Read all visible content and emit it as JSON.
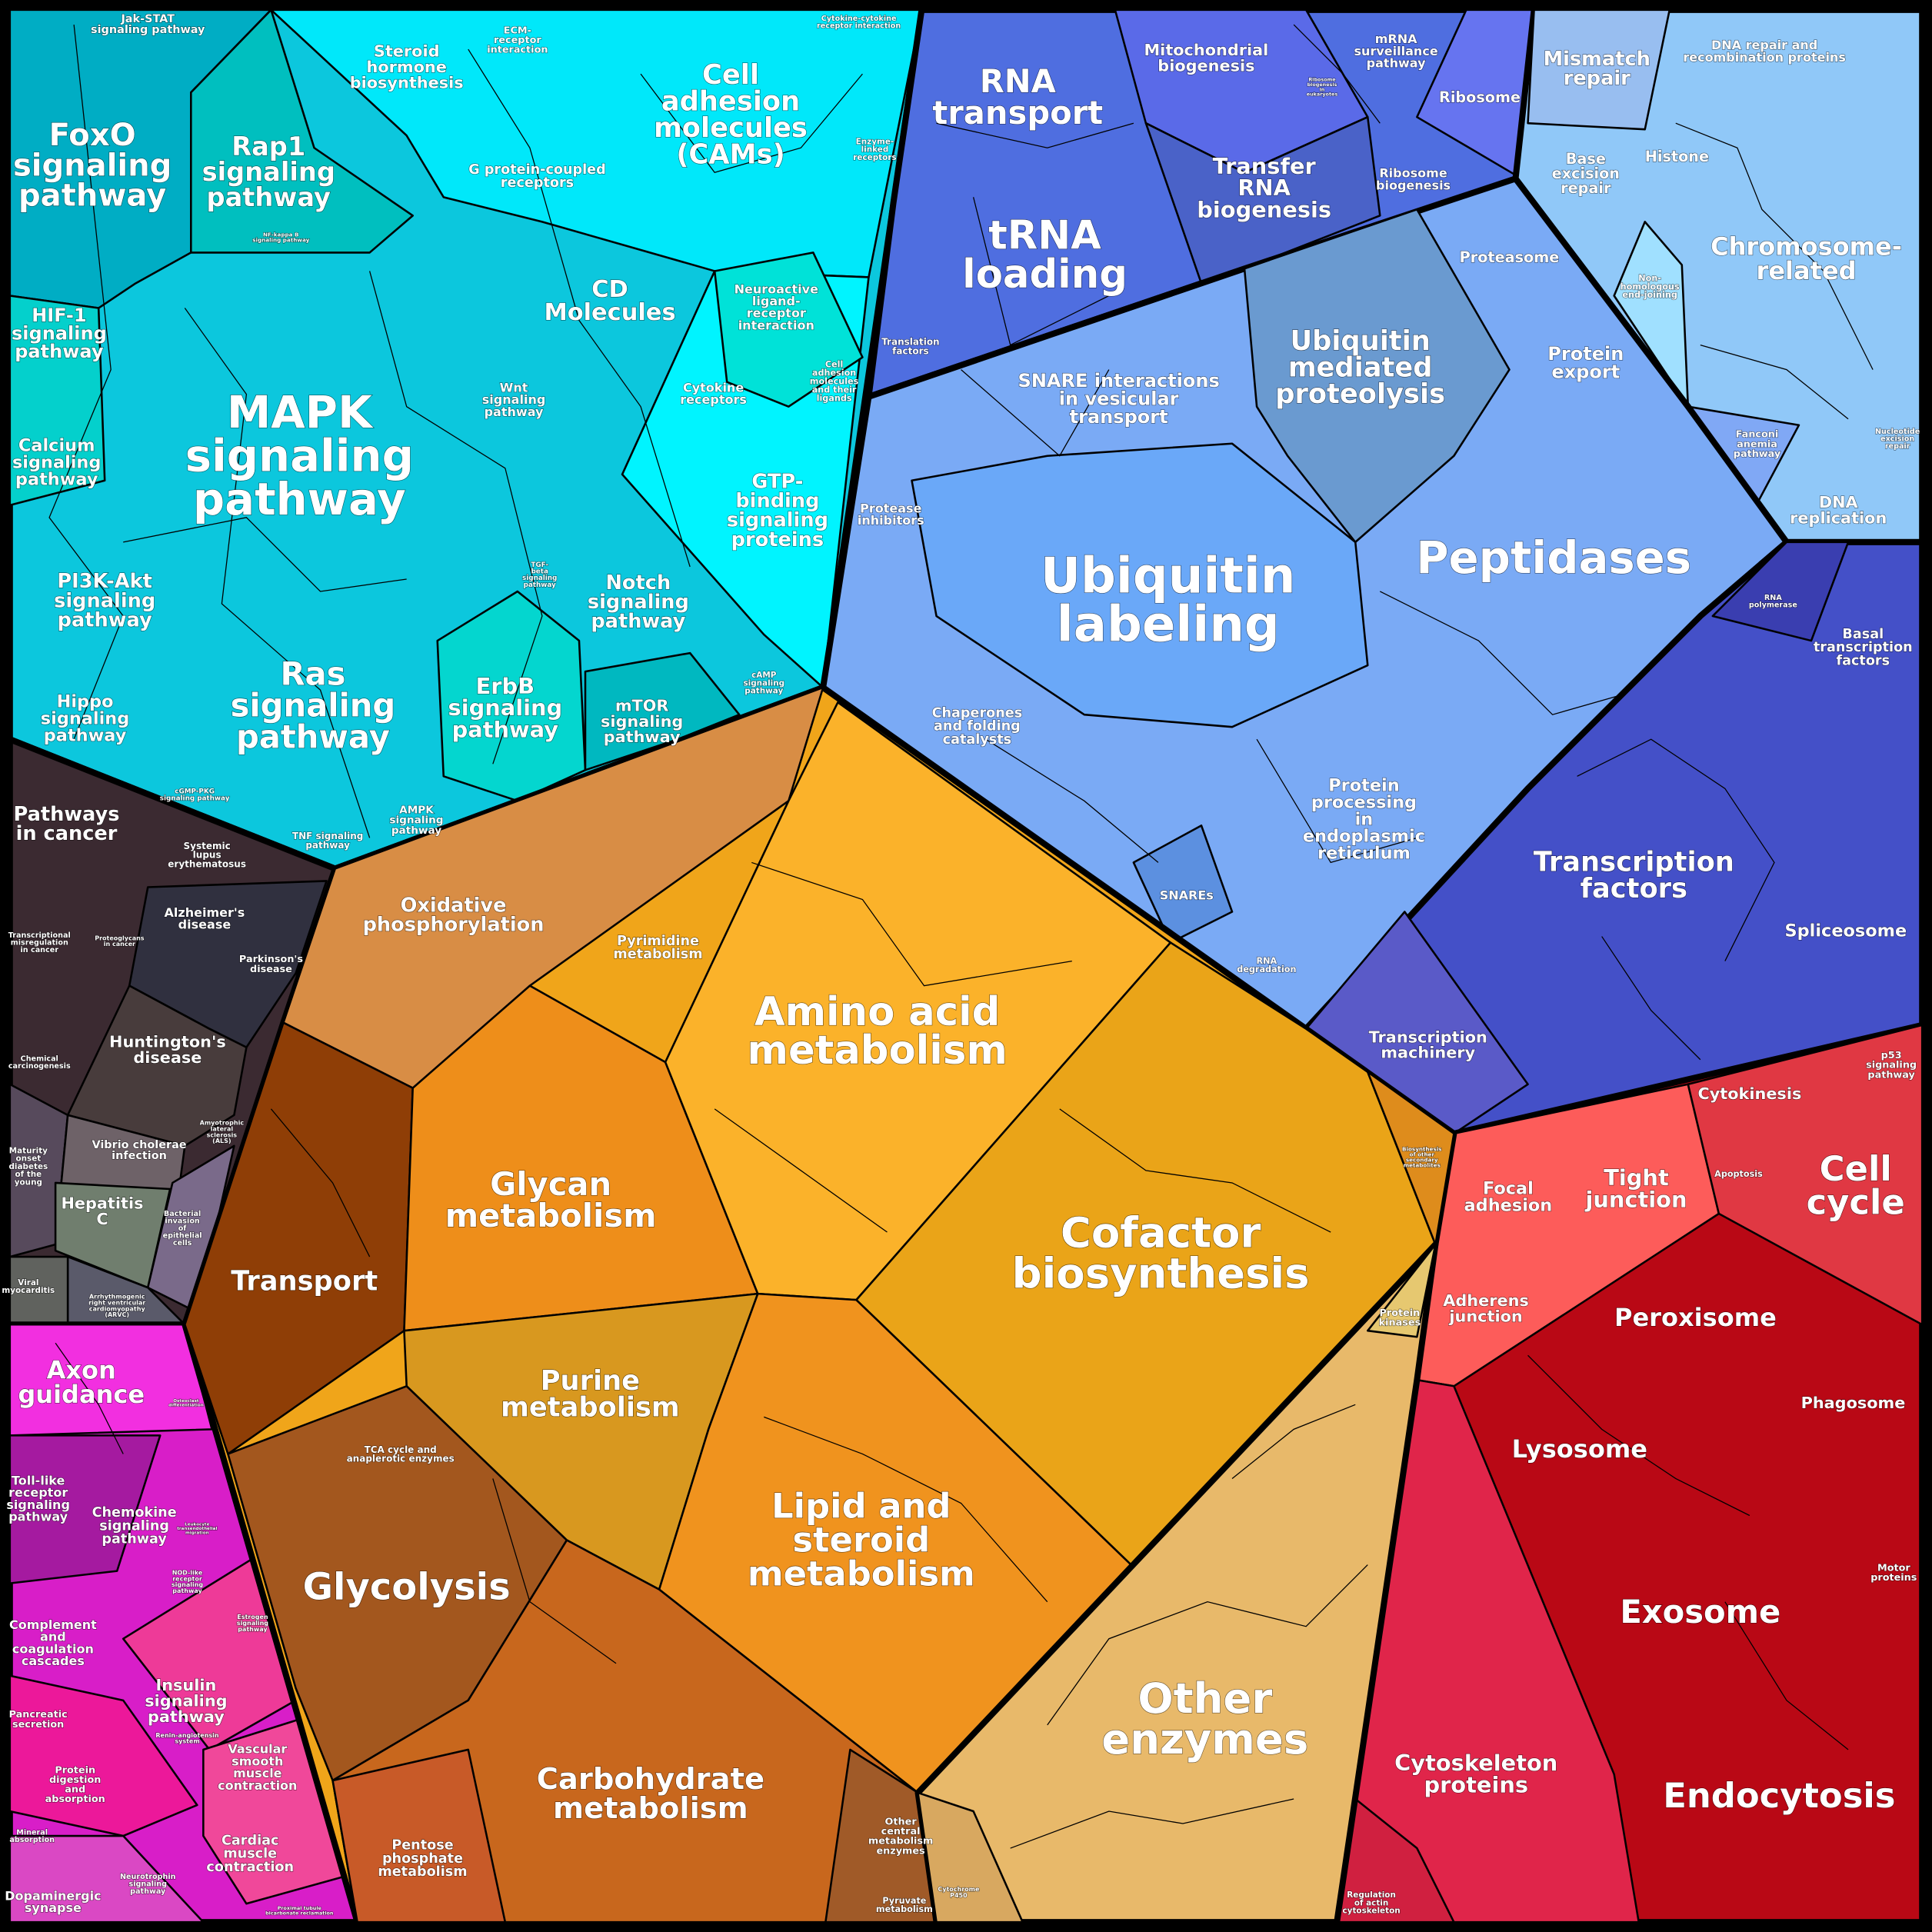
{
  "colors": {
    "environmental": "#0cc7dd",
    "disease": "#3a2a30",
    "organismal": "#d81ec8",
    "genetic_rna": "#4f6ee0",
    "protein_fate": "#7aaaf5",
    "dna": "#90c8f8",
    "transcription": "#4450c8",
    "cellular": "#b90815",
    "metabolism": "#f0a51a",
    "other_enzymes": "#e8b96a"
  },
  "labels": {
    "jak": [
      "Jak-STAT",
      "signaling pathway"
    ],
    "foxo": [
      "FoxO",
      "signaling",
      "pathway"
    ],
    "rap1": [
      "Rap1",
      "signaling",
      "pathway"
    ],
    "steroid": [
      "Steroid",
      "hormone",
      "biosynthesis"
    ],
    "ecm": [
      "ECM-",
      "receptor",
      "interaction"
    ],
    "cams": [
      "Cell",
      "adhesion",
      "molecules",
      "(CAMs)"
    ],
    "cytocyto": [
      "Cytokine-cytokine",
      "receptor interaction"
    ],
    "enzlinked": [
      "Enzyme-",
      "linked",
      "receptors"
    ],
    "gpcr": [
      "G protein-coupled",
      "receptors"
    ],
    "nfkb": [
      "NF-kappa B",
      "signaling pathway"
    ],
    "cd": [
      "CD",
      "Molecules"
    ],
    "neuro": [
      "Neuroactive",
      "ligand-",
      "receptor",
      "interaction"
    ],
    "camlig": [
      "Cell",
      "adhesion",
      "molecules",
      "and their",
      "ligands"
    ],
    "cytorec": [
      "Cytokine",
      "receptors"
    ],
    "hif": [
      "HIF-1",
      "signaling",
      "pathway"
    ],
    "mapk": [
      "MAPK",
      "signaling",
      "pathway"
    ],
    "wnt": [
      "Wnt",
      "signaling",
      "pathway"
    ],
    "calcium": [
      "Calcium",
      "signaling",
      "pathway"
    ],
    "gtp": [
      "GTP-",
      "binding",
      "signaling",
      "proteins"
    ],
    "tgf": [
      "TGF-",
      "beta",
      "signaling",
      "pathway"
    ],
    "pi3k": [
      "PI3K-Akt",
      "signaling",
      "pathway"
    ],
    "notch": [
      "Notch",
      "signaling",
      "pathway"
    ],
    "ras": [
      "Ras",
      "signaling",
      "pathway"
    ],
    "erbb": [
      "ErbB",
      "signaling",
      "pathway"
    ],
    "mtor": [
      "mTOR",
      "signaling",
      "pathway"
    ],
    "camp": [
      "cAMP",
      "signaling",
      "pathway"
    ],
    "hippo": [
      "Hippo",
      "signaling",
      "pathway"
    ],
    "cgmp": [
      "cGMP-PKG",
      "signaling pathway"
    ],
    "tnf": [
      "TNF signaling",
      "pathway"
    ],
    "ampk": [
      "AMPK",
      "signaling",
      "pathway"
    ],
    "cancer": [
      "Pathways",
      "in cancer"
    ],
    "sle": [
      "Systemic",
      "lupus",
      "erythematosus"
    ],
    "misreg": [
      "Transcriptional",
      "misregulation",
      "in cancer"
    ],
    "proteoglycans": [
      "Proteoglycans",
      "in cancer"
    ],
    "alzheimer": [
      "Alzheimer's",
      "disease"
    ],
    "parkinson": [
      "Parkinson's",
      "disease"
    ],
    "huntington": [
      "Huntington's",
      "disease"
    ],
    "chemcarc": [
      "Chemical",
      "carcinogenesis"
    ],
    "als": [
      "Amyotrophic",
      "lateral",
      "sclerosis",
      "(ALS)"
    ],
    "mody": [
      "Maturity",
      "onset",
      "diabetes",
      "of the",
      "young"
    ],
    "vibrio": [
      "Vibrio cholerae",
      "infection"
    ],
    "hepc": [
      "Hepatitis",
      "C"
    ],
    "bacterial": [
      "Bacterial",
      "invasion",
      "of",
      "epithelial",
      "cells"
    ],
    "viral": [
      "Viral",
      "myocarditis"
    ],
    "arvc": [
      "Arrhythmogenic",
      "right ventricular",
      "cardiomyopathy",
      "(ARVC)"
    ],
    "axon": [
      "Axon",
      "guidance"
    ],
    "osteoclast": [
      "Osteoclast",
      "differentiation"
    ],
    "toll": [
      "Toll-like",
      "receptor",
      "signaling",
      "pathway"
    ],
    "chemokine": [
      "Chemokine",
      "signaling",
      "pathway"
    ],
    "leukocyte": [
      "Leukocyte",
      "transendothelial",
      "migration"
    ],
    "nod": [
      "NOD-like",
      "receptor",
      "signaling",
      "pathway"
    ],
    "complement": [
      "Complement",
      "and",
      "coagulation",
      "cascades"
    ],
    "estrogen": [
      "Estrogen",
      "signaling",
      "pathway"
    ],
    "insulin": [
      "Insulin",
      "signaling",
      "pathway"
    ],
    "pancreatic": [
      "Pancreatic",
      "secretion"
    ],
    "renin": [
      "Renin-angiotensin",
      "system"
    ],
    "protdig": [
      "Protein",
      "digestion",
      "and",
      "absorption"
    ],
    "vascular": [
      "Vascular",
      "smooth",
      "muscle",
      "contraction"
    ],
    "mineral": [
      "Mineral",
      "absorption"
    ],
    "cardiac": [
      "Cardiac",
      "muscle",
      "contraction"
    ],
    "neurotrophin": [
      "Neurotrophin",
      "signaling",
      "pathway"
    ],
    "dopaminergic": [
      "Dopaminergic",
      "synapse"
    ],
    "proximal": [
      "Proximal tubule",
      "bicarbonate reclamation"
    ],
    "rnatransport": [
      "RNA",
      "transport"
    ],
    "mito": [
      "Mitochondrial",
      "biogenesis"
    ],
    "mrna": [
      "mRNA",
      "surveillance",
      "pathway"
    ],
    "ribobioeuk": [
      "Ribosome",
      "biogenesis",
      "in",
      "eukaryotes"
    ],
    "ribosome": [
      "Ribosome"
    ],
    "trna": [
      "tRNA",
      "loading"
    ],
    "transferrna": [
      "Transfer",
      "RNA",
      "biogenesis"
    ],
    "ribobio": [
      "Ribosome",
      "biogenesis"
    ],
    "translation": [
      "Translation",
      "factors"
    ],
    "mismatch": [
      "Mismatch",
      "repair"
    ],
    "dnarepair": [
      "DNA repair and",
      "recombination proteins"
    ],
    "ber": [
      "Base",
      "excision",
      "repair"
    ],
    "histone": [
      "Histone"
    ],
    "chromosome": [
      "Chromosome-",
      "related"
    ],
    "nhej": [
      "Non-",
      "homologous",
      "end-joining"
    ],
    "fanconi": [
      "Fanconi",
      "anemia",
      "pathway"
    ],
    "ner": [
      "Nucleotide",
      "excision",
      "repair"
    ],
    "dnarep": [
      "DNA",
      "replication"
    ],
    "proteasome": [
      "Proteasome"
    ],
    "protexport": [
      "Protein",
      "export"
    ],
    "ubimed": [
      "Ubiquitin",
      "mediated",
      "proteolysis"
    ],
    "snareint": [
      "SNARE interactions",
      "in vesicular",
      "transport"
    ],
    "proteaseinh": [
      "Protease",
      "inhibitors"
    ],
    "ubilab": [
      "Ubiquitin",
      "labeling"
    ],
    "peptidases": [
      "Peptidases"
    ],
    "chaperones": [
      "Chaperones",
      "and folding",
      "catalysts"
    ],
    "protproc": [
      "Protein",
      "processing",
      "in",
      "endoplasmic",
      "reticulum"
    ],
    "snares": [
      "SNAREs"
    ],
    "rnadeg": [
      "RNA",
      "degradation"
    ],
    "rnapol": [
      "RNA",
      "polymerase"
    ],
    "basaltf": [
      "Basal",
      "transcription",
      "factors"
    ],
    "tf": [
      "Transcription",
      "factors"
    ],
    "spliceosome": [
      "Spliceosome"
    ],
    "txmach": [
      "Transcription",
      "machinery"
    ],
    "p53": [
      "p53",
      "signaling",
      "pathway"
    ],
    "cytokinesis": [
      "Cytokinesis"
    ],
    "apoptosis": [
      "Apoptosis"
    ],
    "cellcycle": [
      "Cell",
      "cycle"
    ],
    "focal": [
      "Focal",
      "adhesion"
    ],
    "tight": [
      "Tight",
      "junction"
    ],
    "adherens": [
      "Adherens",
      "junction"
    ],
    "peroxisome": [
      "Peroxisome"
    ],
    "phagosome": [
      "Phagosome"
    ],
    "lysosome": [
      "Lysosome"
    ],
    "motor": [
      "Motor",
      "proteins"
    ],
    "exosome": [
      "Exosome"
    ],
    "cytoskeleton": [
      "Cytoskeleton",
      "proteins"
    ],
    "endocytosis": [
      "Endocytosis"
    ],
    "actin": [
      "Regulation",
      "of actin",
      "cytoskeleton"
    ],
    "oxphos": [
      "Oxidative",
      "phosphorylation"
    ],
    "pyrimidine": [
      "Pyrimidine",
      "metabolism"
    ],
    "aminoacid": [
      "Amino acid",
      "metabolism"
    ],
    "glycan": [
      "Glycan",
      "metabolism"
    ],
    "cofactor": [
      "Cofactor",
      "biosynthesis"
    ],
    "transport": [
      "Transport"
    ],
    "secondary": [
      "Biosynthesis",
      "of other",
      "secondary",
      "metabolites"
    ],
    "kinases": [
      "Protein",
      "kinases"
    ],
    "purine": [
      "Purine",
      "metabolism"
    ],
    "tca": [
      "TCA cycle and",
      "anaplerotic enzymes"
    ],
    "lipid": [
      "Lipid and",
      "steroid",
      "metabolism"
    ],
    "glycolysis": [
      "Glycolysis"
    ],
    "otherenz": [
      "Other",
      "enzymes"
    ],
    "carbo": [
      "Carbohydrate",
      "metabolism"
    ],
    "othercentral": [
      "Other",
      "central",
      "metabolism",
      "enzymes"
    ],
    "pentose": [
      "Pentose",
      "phosphate",
      "metabolism"
    ],
    "pyruvate": [
      "Pyruvate",
      "metabolism"
    ],
    "p450": [
      "Cytochrome",
      "P450"
    ]
  }
}
